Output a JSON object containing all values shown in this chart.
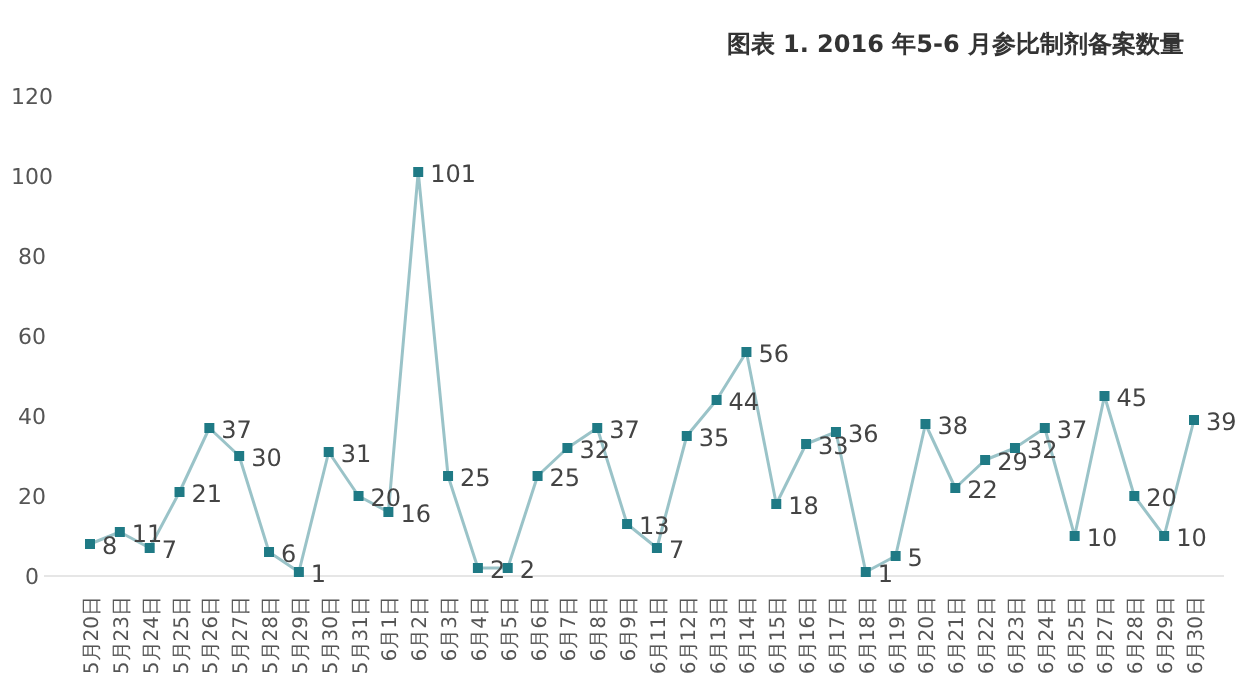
{
  "chart_data": {
    "type": "line",
    "title": "图表 1. 2016 年5-6 月参比制剂备案数量",
    "categories": [
      "5月20日",
      "5月23日",
      "5月24日",
      "5月25日",
      "5月26日",
      "5月27日",
      "5月28日",
      "5月29日",
      "5月30日",
      "5月31日",
      "6月1日",
      "6月2日",
      "6月3日",
      "6月4日",
      "6月5日",
      "6月6日",
      "6月7日",
      "6月8日",
      "6月9日",
      "6月11日",
      "6月12日",
      "6月13日",
      "6月14日",
      "6月15日",
      "6月16日",
      "6月17日",
      "6月18日",
      "6月19日",
      "6月20日",
      "6月21日",
      "6月22日",
      "6月23日",
      "6月24日",
      "6月25日",
      "6月27日",
      "6月28日",
      "6月29日",
      "6月30日"
    ],
    "values": [
      8,
      11,
      7,
      21,
      37,
      30,
      6,
      1,
      31,
      20,
      16,
      101,
      25,
      2,
      2,
      25,
      32,
      37,
      13,
      7,
      35,
      44,
      56,
      18,
      33,
      36,
      1,
      5,
      38,
      22,
      29,
      32,
      37,
      10,
      45,
      20,
      10,
      39
    ],
    "color": "#1f7a85",
    "marker": "square",
    "data_labels": true,
    "ylim": [
      0,
      120
    ],
    "yticks": [
      0,
      20,
      40,
      60,
      80,
      100,
      120
    ]
  }
}
